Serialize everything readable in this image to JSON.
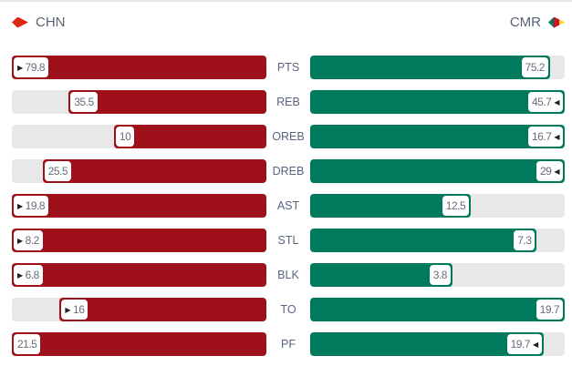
{
  "teams": {
    "left": {
      "code": "CHN",
      "color": "#9e111a",
      "flag": "china-flag-icon"
    },
    "right": {
      "code": "CMR",
      "color": "#00795c",
      "flag": "cameroon-flag-icon"
    }
  },
  "stats": [
    {
      "label": "PTS",
      "left": "79.8",
      "right": "75.2",
      "leader": "left"
    },
    {
      "label": "REB",
      "left": "35.5",
      "right": "45.7",
      "leader": "right"
    },
    {
      "label": "OREB",
      "left": "10",
      "right": "16.7",
      "leader": "right"
    },
    {
      "label": "DREB",
      "left": "25.5",
      "right": "29",
      "leader": "right"
    },
    {
      "label": "AST",
      "left": "19.8",
      "right": "12.5",
      "leader": "left"
    },
    {
      "label": "STL",
      "left": "8.2",
      "right": "7.3",
      "leader": "left"
    },
    {
      "label": "BLK",
      "left": "6.8",
      "right": "3.8",
      "leader": "left"
    },
    {
      "label": "TO",
      "left": "16",
      "right": "19.7",
      "leader": "left"
    },
    {
      "label": "PF",
      "left": "21.5",
      "right": "19.7",
      "leader": "right"
    }
  ]
}
